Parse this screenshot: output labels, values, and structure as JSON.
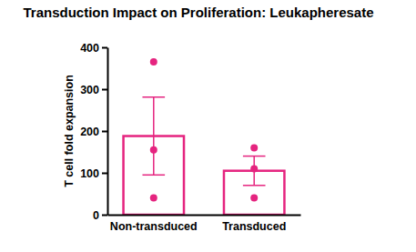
{
  "chart_data": {
    "type": "bar",
    "title": "Transduction Impact on Proliferation: Leukapheresate",
    "y_label": "T cell fold expansion",
    "categories": [
      "Non-transduced",
      "Transduced"
    ],
    "values": [
      188,
      105
    ],
    "errors": [
      93,
      35
    ],
    "points": [
      [
        365,
        155,
        40
      ],
      [
        160,
        110,
        40
      ]
    ],
    "color": "#e5247f",
    "ylim": [
      0,
      400
    ],
    "yticks": [
      0,
      100,
      200,
      300,
      400
    ],
    "grid": false
  }
}
